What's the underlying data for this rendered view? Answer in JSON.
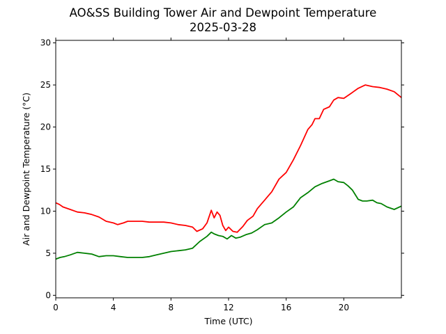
{
  "chart_data": {
    "type": "line",
    "title": "AO&SS Building Tower Air and Dewpoint Temperature",
    "subtitle": "2025-03-28",
    "xlabel": "Time (UTC)",
    "ylabel": "Air and Dewpoint Temperature (°C)",
    "xlim": [
      0,
      24
    ],
    "ylim": [
      -0.3,
      30.3
    ],
    "xticks": [
      0,
      4,
      8,
      12,
      16,
      20
    ],
    "yticks": [
      0,
      5,
      10,
      15,
      20,
      25,
      30
    ],
    "grid": false,
    "legend": "none",
    "series": [
      {
        "color": "#ff0000",
        "x": [
          0,
          0.25,
          0.5,
          1,
          1.5,
          2,
          2.5,
          3,
          3.5,
          4,
          4.3,
          4.7,
          5,
          5.5,
          6,
          6.5,
          7,
          7.5,
          8,
          8.5,
          9,
          9.5,
          9.8,
          10.2,
          10.5,
          10.8,
          11,
          11.2,
          11.4,
          11.6,
          11.8,
          12,
          12.3,
          12.6,
          13,
          13.3,
          13.7,
          14,
          14.5,
          15,
          15.5,
          16,
          16.5,
          17,
          17.5,
          17.8,
          18,
          18.3,
          18.6,
          19,
          19.3,
          19.6,
          20,
          20.5,
          21,
          21.5,
          22,
          22.5,
          23,
          23.5,
          24
        ],
        "y": [
          11.0,
          10.8,
          10.5,
          10.2,
          9.9,
          9.8,
          9.6,
          9.3,
          8.8,
          8.6,
          8.4,
          8.6,
          8.8,
          8.8,
          8.8,
          8.7,
          8.7,
          8.7,
          8.6,
          8.4,
          8.3,
          8.1,
          7.6,
          7.9,
          8.6,
          10.1,
          9.2,
          9.9,
          9.5,
          8.3,
          7.7,
          8.1,
          7.6,
          7.5,
          8.2,
          8.9,
          9.4,
          10.3,
          11.3,
          12.3,
          13.8,
          14.6,
          16.1,
          17.8,
          19.7,
          20.3,
          21.0,
          21.0,
          22.1,
          22.4,
          23.2,
          23.5,
          23.4,
          24.0,
          24.6,
          25.0,
          24.8,
          24.7,
          24.5,
          24.2,
          23.5
        ]
      },
      {
        "color": "#008000",
        "x": [
          0,
          0.3,
          0.6,
          1,
          1.5,
          2,
          2.5,
          3,
          3.5,
          4,
          4.5,
          5,
          5.5,
          6,
          6.5,
          7,
          7.5,
          8,
          8.5,
          9,
          9.5,
          10,
          10.5,
          10.8,
          11,
          11.3,
          11.6,
          11.9,
          12.2,
          12.5,
          12.8,
          13.2,
          13.6,
          14,
          14.5,
          15,
          15.5,
          16,
          16.5,
          17,
          17.5,
          18,
          18.5,
          19,
          19.3,
          19.6,
          20,
          20.3,
          20.6,
          21,
          21.3,
          21.6,
          22,
          22.3,
          22.6,
          23,
          23.5,
          24
        ],
        "y": [
          4.3,
          4.5,
          4.6,
          4.8,
          5.1,
          5.0,
          4.9,
          4.6,
          4.7,
          4.7,
          4.6,
          4.5,
          4.5,
          4.5,
          4.6,
          4.8,
          5.0,
          5.2,
          5.3,
          5.4,
          5.6,
          6.4,
          7.0,
          7.5,
          7.3,
          7.1,
          7.0,
          6.7,
          7.1,
          6.8,
          6.9,
          7.2,
          7.4,
          7.8,
          8.4,
          8.6,
          9.2,
          9.9,
          10.5,
          11.6,
          12.2,
          12.9,
          13.3,
          13.6,
          13.8,
          13.5,
          13.4,
          13.0,
          12.5,
          11.4,
          11.2,
          11.2,
          11.3,
          11.0,
          10.9,
          10.5,
          10.2,
          10.6
        ]
      }
    ]
  }
}
